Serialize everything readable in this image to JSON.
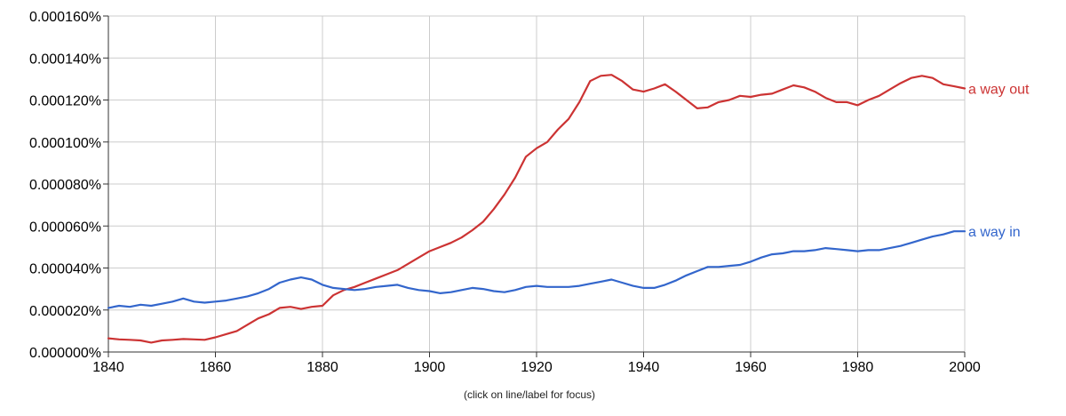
{
  "chart_data": {
    "type": "line",
    "title": "",
    "xlabel": "",
    "ylabel": "",
    "xlim": [
      1840,
      2000
    ],
    "ylim": [
      0,
      0.00016
    ],
    "grid": true,
    "x_ticks": [
      1840,
      1860,
      1880,
      1900,
      1920,
      1940,
      1960,
      1980,
      2000
    ],
    "x_tick_labels": [
      "1840",
      "1860",
      "1880",
      "1900",
      "1920",
      "1940",
      "1960",
      "1980",
      "2000"
    ],
    "y_ticks": [
      0,
      2e-05,
      4e-05,
      6e-05,
      8e-05,
      0.0001,
      0.00012,
      0.00014,
      0.00016
    ],
    "y_tick_labels": [
      "0.000000%",
      "0.000020%",
      "0.000040%",
      "0.000060%",
      "0.000080%",
      "0.000100%",
      "0.000120%",
      "0.000140%",
      "0.000160%"
    ],
    "caption": "(click on line/label for focus)",
    "series": [
      {
        "name": "a way out",
        "color": "#cc3333",
        "x": [
          1840,
          1842,
          1844,
          1846,
          1848,
          1850,
          1852,
          1854,
          1856,
          1858,
          1860,
          1862,
          1864,
          1866,
          1868,
          1870,
          1872,
          1874,
          1876,
          1878,
          1880,
          1882,
          1884,
          1886,
          1888,
          1890,
          1892,
          1894,
          1896,
          1898,
          1900,
          1902,
          1904,
          1906,
          1908,
          1910,
          1912,
          1914,
          1916,
          1918,
          1920,
          1922,
          1924,
          1926,
          1928,
          1930,
          1932,
          1934,
          1936,
          1938,
          1940,
          1942,
          1944,
          1946,
          1948,
          1950,
          1952,
          1954,
          1956,
          1958,
          1960,
          1962,
          1964,
          1966,
          1968,
          1970,
          1972,
          1974,
          1976,
          1978,
          1980,
          1982,
          1984,
          1986,
          1988,
          1990,
          1992,
          1994,
          1996,
          1998,
          2000
        ],
        "values": [
          6.5e-06,
          6e-06,
          5.8e-06,
          5.5e-06,
          4.5e-06,
          5.5e-06,
          5.8e-06,
          6.2e-06,
          6e-06,
          5.8e-06,
          7e-06,
          8.5e-06,
          1e-05,
          1.3e-05,
          1.6e-05,
          1.8e-05,
          2.1e-05,
          2.15e-05,
          2.05e-05,
          2.15e-05,
          2.2e-05,
          2.7e-05,
          2.95e-05,
          3.1e-05,
          3.3e-05,
          3.5e-05,
          3.7e-05,
          3.9e-05,
          4.2e-05,
          4.5e-05,
          4.8e-05,
          5e-05,
          5.2e-05,
          5.45e-05,
          5.8e-05,
          6.2e-05,
          6.8e-05,
          7.5e-05,
          8.3e-05,
          9.3e-05,
          9.7e-05,
          0.0001,
          0.000106,
          0.000111,
          0.000119,
          0.000129,
          0.0001315,
          0.000132,
          0.000129,
          0.000125,
          0.000124,
          0.0001255,
          0.0001275,
          0.000124,
          0.00012,
          0.000116,
          0.0001165,
          0.000119,
          0.00012,
          0.000122,
          0.0001215,
          0.0001225,
          0.000123,
          0.000125,
          0.000127,
          0.000126,
          0.000124,
          0.000121,
          0.000119,
          0.000119,
          0.0001175,
          0.00012,
          0.000122,
          0.000125,
          0.000128,
          0.0001305,
          0.0001315,
          0.0001305,
          0.0001275,
          0.0001265,
          0.0001255
        ]
      },
      {
        "name": "a way in",
        "color": "#3366cc",
        "x": [
          1840,
          1842,
          1844,
          1846,
          1848,
          1850,
          1852,
          1854,
          1856,
          1858,
          1860,
          1862,
          1864,
          1866,
          1868,
          1870,
          1872,
          1874,
          1876,
          1878,
          1880,
          1882,
          1884,
          1886,
          1888,
          1890,
          1892,
          1894,
          1896,
          1898,
          1900,
          1902,
          1904,
          1906,
          1908,
          1910,
          1912,
          1914,
          1916,
          1918,
          1920,
          1922,
          1924,
          1926,
          1928,
          1930,
          1932,
          1934,
          1936,
          1938,
          1940,
          1942,
          1944,
          1946,
          1948,
          1950,
          1952,
          1954,
          1956,
          1958,
          1960,
          1962,
          1964,
          1966,
          1968,
          1970,
          1972,
          1974,
          1976,
          1978,
          1980,
          1982,
          1984,
          1986,
          1988,
          1990,
          1992,
          1994,
          1996,
          1998,
          2000
        ],
        "values": [
          2.1e-05,
          2.2e-05,
          2.15e-05,
          2.25e-05,
          2.2e-05,
          2.3e-05,
          2.4e-05,
          2.55e-05,
          2.4e-05,
          2.35e-05,
          2.4e-05,
          2.45e-05,
          2.55e-05,
          2.65e-05,
          2.8e-05,
          3e-05,
          3.3e-05,
          3.45e-05,
          3.55e-05,
          3.45e-05,
          3.2e-05,
          3.05e-05,
          3e-05,
          2.95e-05,
          3e-05,
          3.1e-05,
          3.15e-05,
          3.2e-05,
          3.05e-05,
          2.95e-05,
          2.9e-05,
          2.8e-05,
          2.85e-05,
          2.95e-05,
          3.05e-05,
          3e-05,
          2.9e-05,
          2.85e-05,
          2.95e-05,
          3.1e-05,
          3.15e-05,
          3.1e-05,
          3.1e-05,
          3.1e-05,
          3.15e-05,
          3.25e-05,
          3.35e-05,
          3.45e-05,
          3.3e-05,
          3.15e-05,
          3.05e-05,
          3.05e-05,
          3.2e-05,
          3.4e-05,
          3.65e-05,
          3.85e-05,
          4.05e-05,
          4.05e-05,
          4.1e-05,
          4.15e-05,
          4.3e-05,
          4.5e-05,
          4.65e-05,
          4.7e-05,
          4.8e-05,
          4.8e-05,
          4.85e-05,
          4.95e-05,
          4.9e-05,
          4.85e-05,
          4.8e-05,
          4.85e-05,
          4.85e-05,
          4.95e-05,
          5.05e-05,
          5.2e-05,
          5.35e-05,
          5.5e-05,
          5.6e-05,
          5.75e-05,
          5.75e-05
        ]
      }
    ]
  }
}
